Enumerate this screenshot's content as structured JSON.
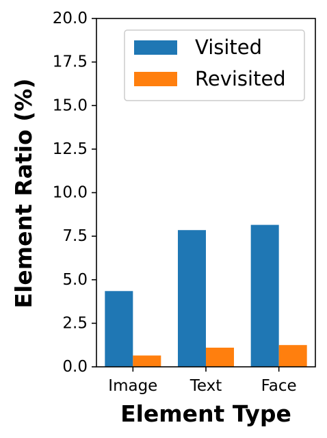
{
  "chart_data": {
    "type": "bar",
    "title": "",
    "xlabel": "Element Type",
    "ylabel": "Element Ratio (%)",
    "categories": [
      "Image",
      "Text",
      "Face"
    ],
    "ylim": [
      0,
      20
    ],
    "yticks": [
      "0.0",
      "2.5",
      "5.0",
      "7.5",
      "10.0",
      "12.5",
      "15.0",
      "17.5",
      "20.0"
    ],
    "series": [
      {
        "name": "Visited",
        "values": [
          4.35,
          7.85,
          8.15
        ],
        "color": "#1f77b4"
      },
      {
        "name": "Revisited",
        "values": [
          0.65,
          1.1,
          1.25
        ],
        "color": "#ff7f0e"
      }
    ],
    "grid": false,
    "legend_position": "top-right"
  }
}
